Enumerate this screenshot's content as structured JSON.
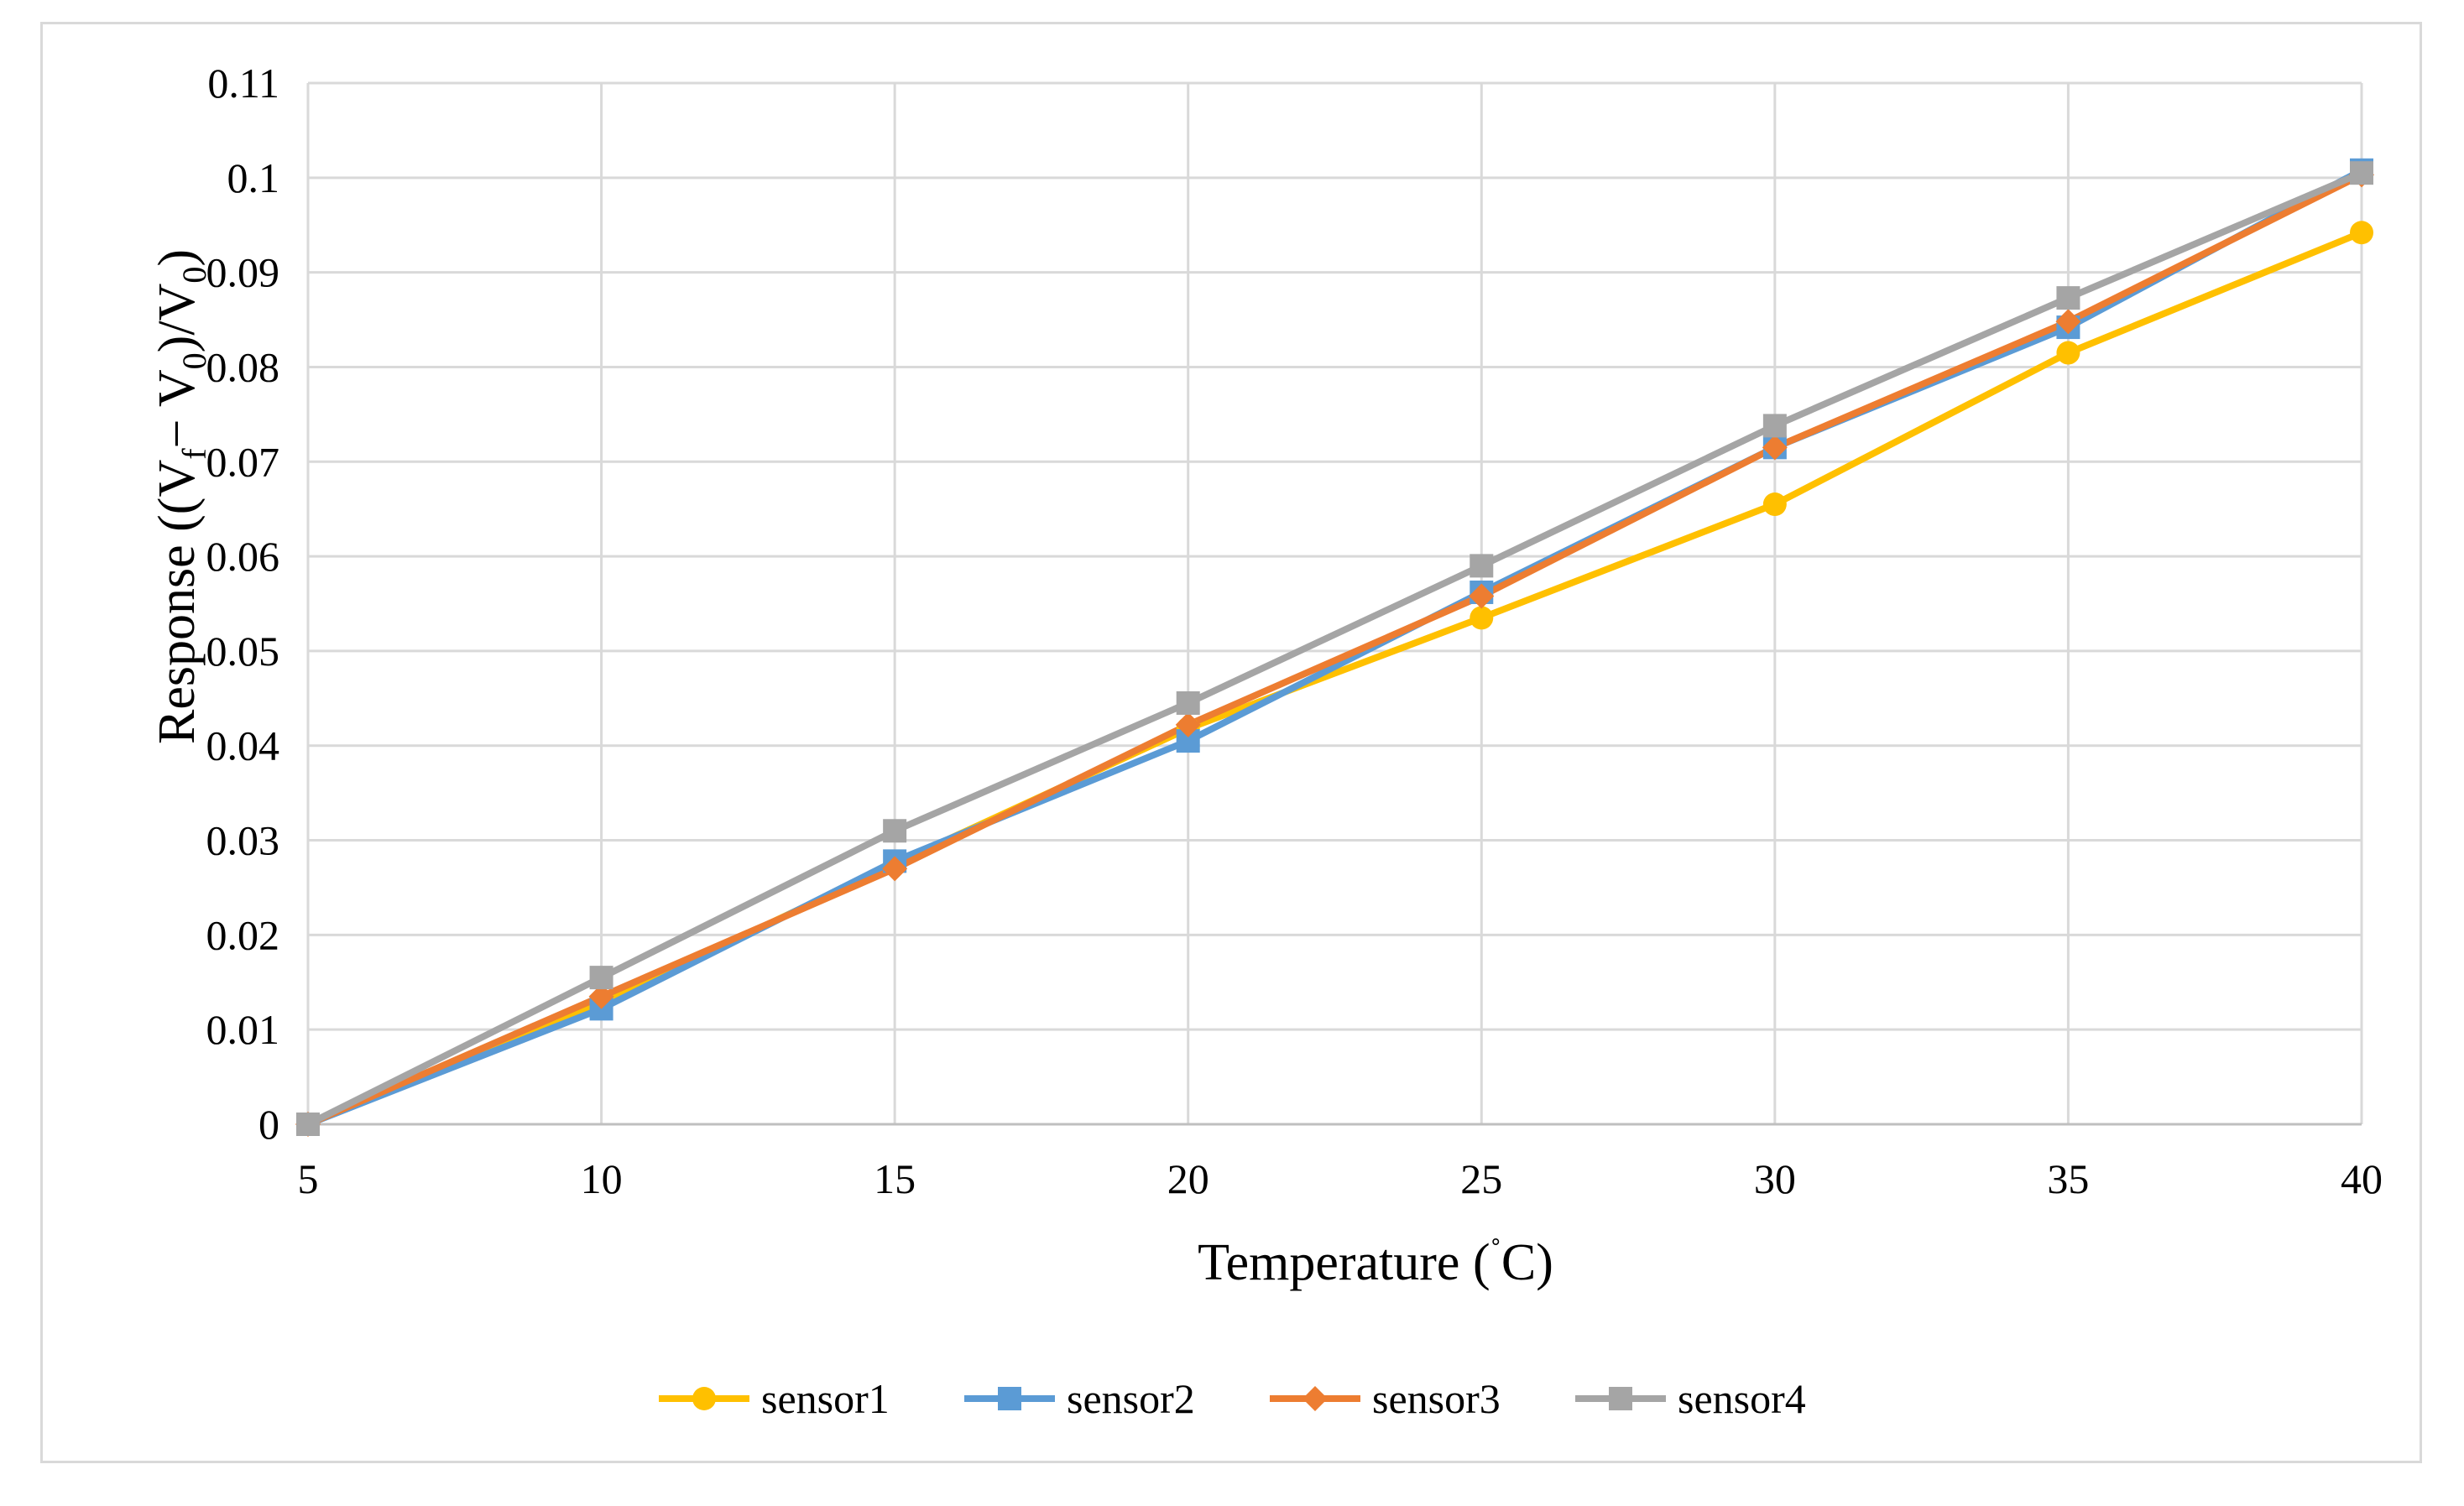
{
  "chart_data": {
    "type": "line",
    "title": "",
    "xlabel": "Temperature (˚C)",
    "ylabel": "Response ((Vf− V0)/V0)",
    "ylabel_parts": {
      "prefix": "Response ((V",
      "sub1": "f",
      "mid": "− V",
      "sub2": "0",
      "mid2": ")/V",
      "sub3": "0",
      "suffix": ")"
    },
    "xlabel_parts": {
      "prefix": "Temperature (",
      "degree": "˚",
      "suffix": "C)"
    },
    "x": [
      5,
      10,
      15,
      20,
      25,
      30,
      35,
      40
    ],
    "x_tick_labels": [
      "5",
      "10",
      "15",
      "20",
      "25",
      "30",
      "35",
      "40"
    ],
    "xlim": [
      5,
      40
    ],
    "ylim": [
      0,
      0.11
    ],
    "y_ticks": [
      0,
      0.01,
      0.02,
      0.03,
      0.04,
      0.05,
      0.06,
      0.07,
      0.08,
      0.09,
      0.1,
      0.11
    ],
    "y_tick_labels": [
      "0",
      "0.01",
      "0.02",
      "0.03",
      "0.04",
      "0.05",
      "0.06",
      "0.07",
      "0.08",
      "0.09",
      "0.1",
      "0.11"
    ],
    "grid": true,
    "legend_position": "bottom",
    "series": [
      {
        "name": "sensor1",
        "color": "#ffc000",
        "marker": "circle",
        "values": [
          0,
          0.0128,
          0.0275,
          0.0418,
          0.0535,
          0.0655,
          0.0815,
          0.0942
        ]
      },
      {
        "name": "sensor2",
        "color": "#5b9bd5",
        "marker": "square",
        "values": [
          0,
          0.0122,
          0.0278,
          0.0405,
          0.0562,
          0.0715,
          0.0842,
          0.1008
        ]
      },
      {
        "name": "sensor3",
        "color": "#ed7d31",
        "marker": "diamond",
        "values": [
          0,
          0.0135,
          0.027,
          0.0422,
          0.0558,
          0.0715,
          0.0848,
          0.1003
        ]
      },
      {
        "name": "sensor4",
        "color": "#a5a5a5",
        "marker": "square",
        "values": [
          0,
          0.0155,
          0.031,
          0.0445,
          0.059,
          0.0738,
          0.0873,
          0.1005
        ]
      }
    ]
  }
}
